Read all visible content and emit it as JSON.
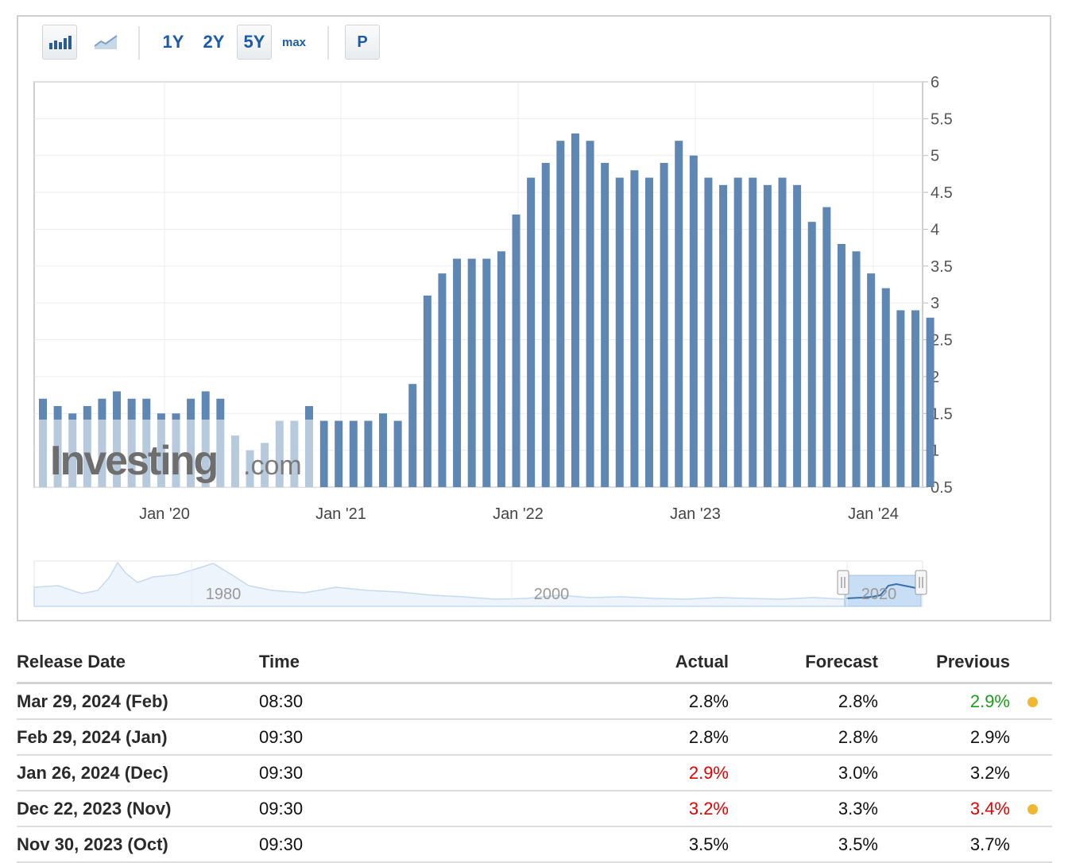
{
  "toolbar": {
    "ranges": [
      "1Y",
      "2Y",
      "5Y",
      "max"
    ],
    "active_range": "5Y",
    "p_label": "P",
    "icons": [
      "bar-chart-icon",
      "line-chart-icon"
    ]
  },
  "watermark": {
    "main": "Investing",
    "suffix": ".com"
  },
  "navigator": {
    "labels": [
      "1980",
      "2000",
      "2020"
    ]
  },
  "colors": {
    "bar": "#5f87b3",
    "bar_faded": "#b3c7dd",
    "positive": "#1a9d1a",
    "negative": "#e40000",
    "dot": "#f0b732",
    "navigator_fill": "#c7def4",
    "navigator_line": "#3b6ea8"
  },
  "chart_data": {
    "type": "bar",
    "ylim": [
      0.5,
      6
    ],
    "y_ticks": [
      "6",
      "5.5",
      "5",
      "4.5",
      "4",
      "3.5",
      "3",
      "2.5",
      "2",
      "1.5",
      "1",
      "0.5"
    ],
    "x_ticks": [
      "Jan '20",
      "Jan '21",
      "Jan '22",
      "Jan '23",
      "Jan '24"
    ],
    "values": [
      1.7,
      1.6,
      1.5,
      1.6,
      1.7,
      1.8,
      1.7,
      1.7,
      1.5,
      1.5,
      1.7,
      1.8,
      1.7,
      1.2,
      1.0,
      1.1,
      1.4,
      1.4,
      1.6,
      1.4,
      1.4,
      1.4,
      1.4,
      1.5,
      1.4,
      1.9,
      3.1,
      3.4,
      3.6,
      3.6,
      3.6,
      3.7,
      4.2,
      4.7,
      4.9,
      5.2,
      5.3,
      5.2,
      4.9,
      4.7,
      4.8,
      4.7,
      4.9,
      5.2,
      5.0,
      4.7,
      4.6,
      4.7,
      4.7,
      4.6,
      4.7,
      4.6,
      4.1,
      4.3,
      3.8,
      3.7,
      3.4,
      3.2,
      2.9,
      2.9,
      2.8
    ]
  },
  "table": {
    "headers": {
      "release_date": "Release Date",
      "time": "Time",
      "actual": "Actual",
      "forecast": "Forecast",
      "previous": "Previous"
    },
    "rows": [
      {
        "date": "Mar 29, 2024 (Feb)",
        "time": "08:30",
        "actual": "2.8%",
        "actual_color": "#111111",
        "forecast": "2.8%",
        "previous": "2.9%",
        "previous_color": "#1a9d1a",
        "dot": true
      },
      {
        "date": "Feb 29, 2024 (Jan)",
        "time": "09:30",
        "actual": "2.8%",
        "actual_color": "#111111",
        "forecast": "2.8%",
        "previous": "2.9%",
        "previous_color": "#111111",
        "dot": false
      },
      {
        "date": "Jan 26, 2024 (Dec)",
        "time": "09:30",
        "actual": "2.9%",
        "actual_color": "#e40000",
        "forecast": "3.0%",
        "previous": "3.2%",
        "previous_color": "#111111",
        "dot": false
      },
      {
        "date": "Dec 22, 2023 (Nov)",
        "time": "09:30",
        "actual": "3.2%",
        "actual_color": "#e40000",
        "forecast": "3.3%",
        "previous": "3.4%",
        "previous_color": "#e40000",
        "dot": true
      },
      {
        "date": "Nov 30, 2023 (Oct)",
        "time": "09:30",
        "actual": "3.5%",
        "actual_color": "#111111",
        "forecast": "3.5%",
        "previous": "3.7%",
        "previous_color": "#111111",
        "dot": false
      }
    ]
  }
}
